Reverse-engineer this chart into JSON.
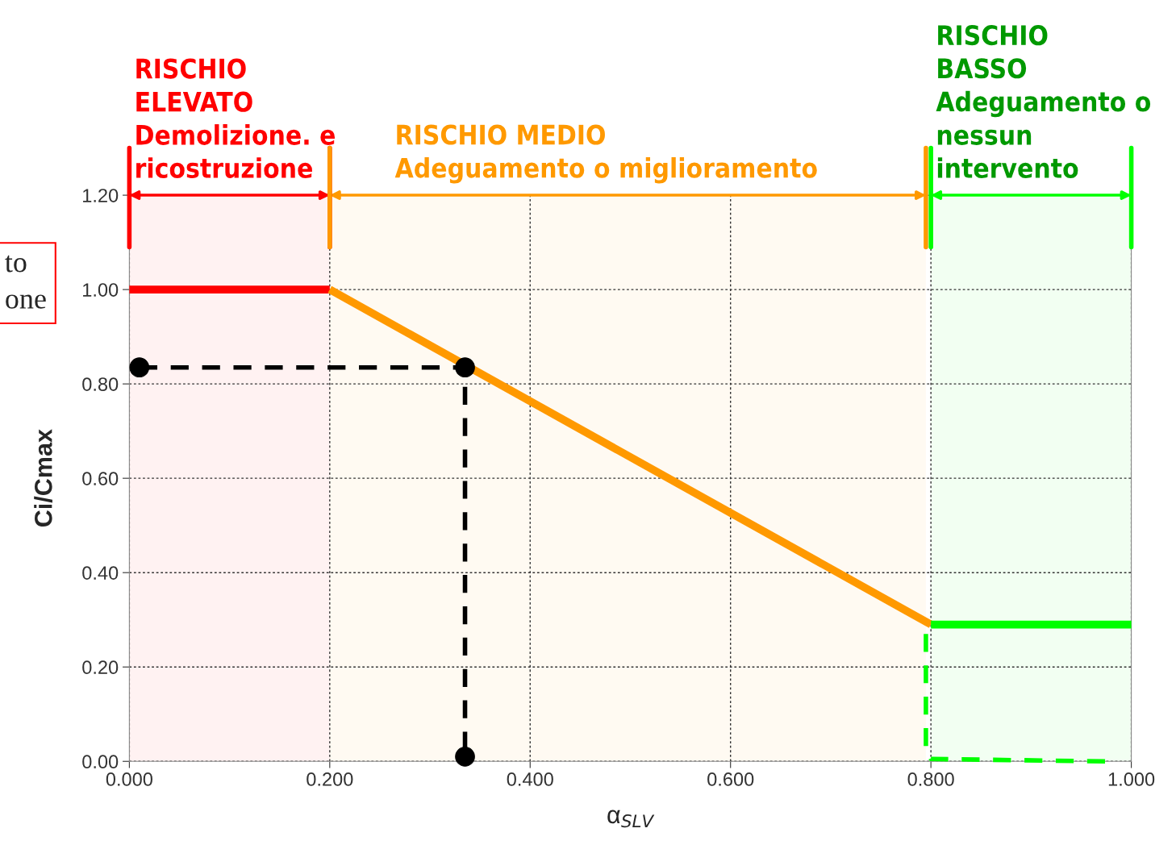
{
  "chart_data": {
    "type": "line",
    "xlabel": "α$_{SLV}$",
    "ylabel": "Ci/Cmax",
    "xlim": [
      0,
      1
    ],
    "ylim": [
      0,
      1.2
    ],
    "xticks": [
      {
        "value": 0,
        "label": "0.000"
      },
      {
        "value": 0.2,
        "label": "0.200"
      },
      {
        "value": 0.4,
        "label": "0.400"
      },
      {
        "value": 0.6,
        "label": "0.600"
      },
      {
        "value": 0.8,
        "label": "0.800"
      },
      {
        "value": 1.0,
        "label": "1.000"
      }
    ],
    "yticks": [
      {
        "value": 0,
        "label": "0.00"
      },
      {
        "value": 0.2,
        "label": "0.20"
      },
      {
        "value": 0.4,
        "label": "0.40"
      },
      {
        "value": 0.6,
        "label": "0.60"
      },
      {
        "value": 0.8,
        "label": "0.80"
      },
      {
        "value": 1.0,
        "label": "1.00"
      },
      {
        "value": 1.2,
        "label": "1.20"
      }
    ],
    "grid": true,
    "legend": false,
    "series": [
      {
        "color": "#ff0000",
        "x": [
          0,
          0.2
        ],
        "values": [
          1.0,
          1.0
        ],
        "line_style": "solid",
        "marker": "none"
      },
      {
        "color": "#ff9900",
        "x": [
          0.2,
          0.8
        ],
        "values": [
          1.0,
          0.29
        ],
        "line_style": "solid",
        "marker": "none"
      },
      {
        "color": "#00ff00",
        "x": [
          0.8,
          1.0
        ],
        "values": [
          0.29,
          0.29
        ],
        "line_style": "solid",
        "marker": "none"
      },
      {
        "color": "#00ff00",
        "x": [
          0.795,
          0.795,
          0.8,
          0.975
        ],
        "values": [
          0.27,
          0.03,
          0.005,
          0.0
        ],
        "line_style": "dashed",
        "marker": "none"
      },
      {
        "color": "#000000",
        "x": [
          0.01,
          0.335,
          0.335
        ],
        "values": [
          0.835,
          0.835,
          0.01
        ],
        "line_style": "dashed",
        "marker": "circle"
      }
    ],
    "bands": [
      {
        "axis": "x",
        "from": 0,
        "to": 0.2,
        "label": "RISCHIO\nELEVATO\nDemolizione. e\nricostruzione",
        "color": "#ff0000"
      },
      {
        "axis": "x",
        "from": 0.2,
        "to": 0.795,
        "label": "RISCHIO MEDIO\nAdeguamento o miglioramento",
        "color": "#ff9900"
      },
      {
        "axis": "x",
        "from": 0.8,
        "to": 1.0,
        "label": "RISCHIO\nBASSO\nAdeguamento o\nnessun\nintervento",
        "color": "#00ff00"
      }
    ],
    "annotations": [
      "to\none"
    ]
  }
}
